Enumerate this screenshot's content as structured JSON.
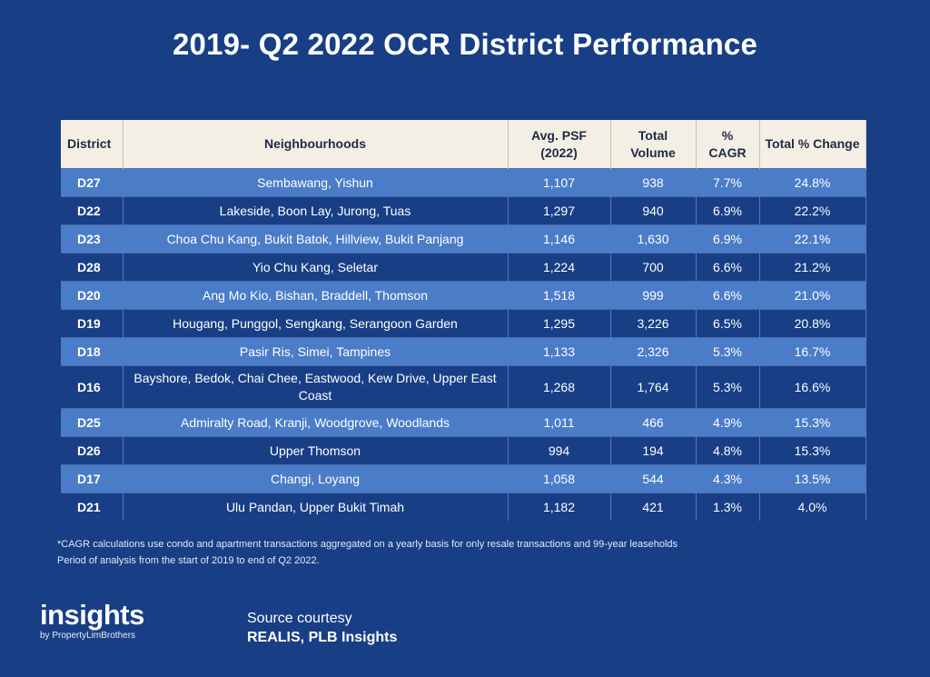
{
  "title": "2019- Q2 2022 OCR District Performance",
  "table": {
    "headers": {
      "district": "District",
      "neighbourhoods": "Neighbourhoods",
      "avg_psf": "Avg. PSF (2022)",
      "total_volume": "Total Volume",
      "cagr": "% CAGR",
      "total_change": "Total % Change"
    },
    "rows": [
      {
        "district": "D27",
        "neighbourhoods": "Sembawang, Yishun",
        "avg_psf": "1,107",
        "volume": "938",
        "cagr": "7.7%",
        "change": "24.8%"
      },
      {
        "district": "D22",
        "neighbourhoods": "Lakeside, Boon Lay, Jurong, Tuas",
        "avg_psf": "1,297",
        "volume": "940",
        "cagr": "6.9%",
        "change": "22.2%"
      },
      {
        "district": "D23",
        "neighbourhoods": "Choa Chu Kang, Bukit Batok, Hillview, Bukit Panjang",
        "avg_psf": "1,146",
        "volume": "1,630",
        "cagr": "6.9%",
        "change": "22.1%"
      },
      {
        "district": "D28",
        "neighbourhoods": "Yio Chu Kang, Seletar",
        "avg_psf": "1,224",
        "volume": "700",
        "cagr": "6.6%",
        "change": "21.2%"
      },
      {
        "district": "D20",
        "neighbourhoods": "Ang Mo Kio, Bishan, Braddell, Thomson",
        "avg_psf": "1,518",
        "volume": "999",
        "cagr": "6.6%",
        "change": "21.0%"
      },
      {
        "district": "D19",
        "neighbourhoods": "Hougang, Punggol, Sengkang, Serangoon Garden",
        "avg_psf": "1,295",
        "volume": "3,226",
        "cagr": "6.5%",
        "change": "20.8%"
      },
      {
        "district": "D18",
        "neighbourhoods": "Pasir Ris, Simei, Tampines",
        "avg_psf": "1,133",
        "volume": "2,326",
        "cagr": "5.3%",
        "change": "16.7%"
      },
      {
        "district": "D16",
        "neighbourhoods": "Bayshore, Bedok, Chai Chee, Eastwood, Kew Drive, Upper East Coast",
        "avg_psf": "1,268",
        "volume": "1,764",
        "cagr": "5.3%",
        "change": "16.6%"
      },
      {
        "district": "D25",
        "neighbourhoods": "Admiralty Road, Kranji, Woodgrove, Woodlands",
        "avg_psf": "1,011",
        "volume": "466",
        "cagr": "4.9%",
        "change": "15.3%"
      },
      {
        "district": "D26",
        "neighbourhoods": "Upper Thomson",
        "avg_psf": "994",
        "volume": "194",
        "cagr": "4.8%",
        "change": "15.3%"
      },
      {
        "district": "D17",
        "neighbourhoods": "Changi, Loyang",
        "avg_psf": "1,058",
        "volume": "544",
        "cagr": "4.3%",
        "change": "13.5%"
      },
      {
        "district": "D21",
        "neighbourhoods": "Ulu Pandan, Upper Bukit Timah",
        "avg_psf": "1,182",
        "volume": "421",
        "cagr": "1.3%",
        "change": "4.0%"
      }
    ]
  },
  "footnote": {
    "line1": "*CAGR calculations use condo and apartment transactions aggregated on a yearly basis for only resale transactions and 99-year leaseholds",
    "line2": "Period of analysis from the start of 2019 to end of Q2 2022."
  },
  "brand": {
    "name": "insights",
    "tagline": "by PropertyLimBrothers"
  },
  "source": {
    "line1": "Source courtesy",
    "line2": "REALIS, PLB Insights"
  },
  "colors": {
    "background": "#183f86",
    "header_bg": "#f3efe4",
    "row_light": "#4b7cc8",
    "row_dark": "#183f86"
  },
  "chart_data": {
    "type": "table",
    "title": "2019- Q2 2022 OCR District Performance",
    "columns": [
      "District",
      "Neighbourhoods",
      "Avg. PSF (2022)",
      "Total Volume",
      "% CAGR",
      "Total % Change"
    ],
    "rows": [
      [
        "D27",
        "Sembawang, Yishun",
        1107,
        938,
        7.7,
        24.8
      ],
      [
        "D22",
        "Lakeside, Boon Lay, Jurong, Tuas",
        1297,
        940,
        6.9,
        22.2
      ],
      [
        "D23",
        "Choa Chu Kang, Bukit Batok, Hillview, Bukit Panjang",
        1146,
        1630,
        6.9,
        22.1
      ],
      [
        "D28",
        "Yio Chu Kang, Seletar",
        1224,
        700,
        6.6,
        21.2
      ],
      [
        "D20",
        "Ang Mo Kio, Bishan, Braddell, Thomson",
        1518,
        999,
        6.6,
        21.0
      ],
      [
        "D19",
        "Hougang, Punggol, Sengkang, Serangoon Garden",
        1295,
        3226,
        6.5,
        20.8
      ],
      [
        "D18",
        "Pasir Ris, Simei, Tampines",
        1133,
        2326,
        5.3,
        16.7
      ],
      [
        "D16",
        "Bayshore, Bedok, Chai Chee, Eastwood, Kew Drive, Upper East Coast",
        1268,
        1764,
        5.3,
        16.6
      ],
      [
        "D25",
        "Admiralty Road, Kranji, Woodgrove, Woodlands",
        1011,
        466,
        4.9,
        15.3
      ],
      [
        "D26",
        "Upper Thomson",
        994,
        194,
        4.8,
        15.3
      ],
      [
        "D17",
        "Changi, Loyang",
        1058,
        544,
        4.3,
        13.5
      ],
      [
        "D21",
        "Ulu Pandan, Upper Bukit Timah",
        1182,
        421,
        1.3,
        4.0
      ]
    ]
  }
}
